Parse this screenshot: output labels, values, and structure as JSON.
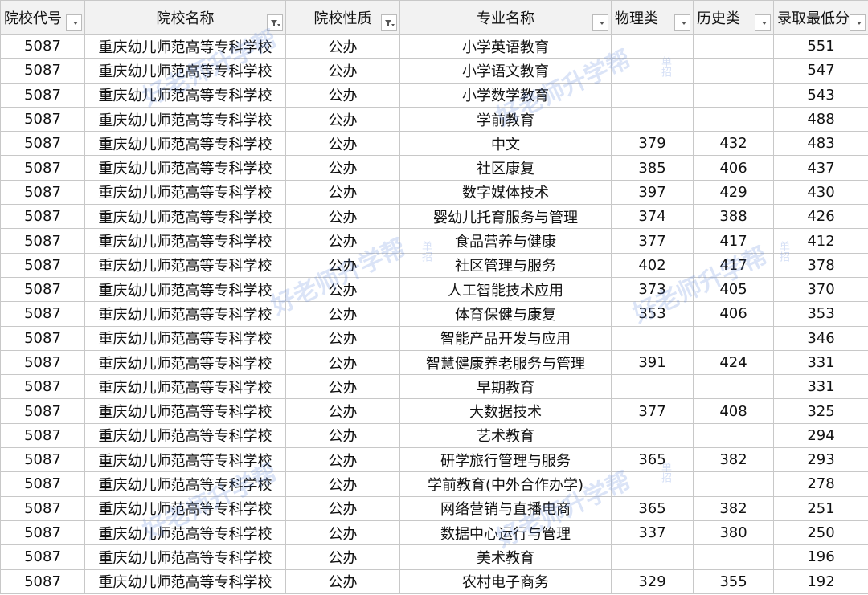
{
  "table": {
    "headers": [
      "院校代号",
      "院校名称",
      "院校性质",
      "专业名称",
      "物理类",
      "历史类",
      "录取最低分"
    ],
    "rows": [
      [
        "5087",
        "重庆幼儿师范高等专科学校",
        "公办",
        "小学英语教育",
        null,
        null,
        551
      ],
      [
        "5087",
        "重庆幼儿师范高等专科学校",
        "公办",
        "小学语文教育",
        null,
        null,
        547
      ],
      [
        "5087",
        "重庆幼儿师范高等专科学校",
        "公办",
        "小学数学教育",
        null,
        null,
        543
      ],
      [
        "5087",
        "重庆幼儿师范高等专科学校",
        "公办",
        "学前教育",
        null,
        null,
        488
      ],
      [
        "5087",
        "重庆幼儿师范高等专科学校",
        "公办",
        "中文",
        379,
        432,
        483
      ],
      [
        "5087",
        "重庆幼儿师范高等专科学校",
        "公办",
        "社区康复",
        385,
        406,
        437
      ],
      [
        "5087",
        "重庆幼儿师范高等专科学校",
        "公办",
        "数字媒体技术",
        397,
        429,
        430
      ],
      [
        "5087",
        "重庆幼儿师范高等专科学校",
        "公办",
        "婴幼儿托育服务与管理",
        374,
        388,
        426
      ],
      [
        "5087",
        "重庆幼儿师范高等专科学校",
        "公办",
        "食品营养与健康",
        377,
        417,
        412
      ],
      [
        "5087",
        "重庆幼儿师范高等专科学校",
        "公办",
        "社区管理与服务",
        402,
        417,
        378
      ],
      [
        "5087",
        "重庆幼儿师范高等专科学校",
        "公办",
        "人工智能技术应用",
        373,
        405,
        370
      ],
      [
        "5087",
        "重庆幼儿师范高等专科学校",
        "公办",
        "体育保健与康复",
        353,
        406,
        353
      ],
      [
        "5087",
        "重庆幼儿师范高等专科学校",
        "公办",
        "智能产品开发与应用",
        null,
        null,
        346
      ],
      [
        "5087",
        "重庆幼儿师范高等专科学校",
        "公办",
        "智慧健康养老服务与管理",
        391,
        424,
        331
      ],
      [
        "5087",
        "重庆幼儿师范高等专科学校",
        "公办",
        "早期教育",
        null,
        null,
        331
      ],
      [
        "5087",
        "重庆幼儿师范高等专科学校",
        "公办",
        "大数据技术",
        377,
        408,
        325
      ],
      [
        "5087",
        "重庆幼儿师范高等专科学校",
        "公办",
        "艺术教育",
        null,
        null,
        294
      ],
      [
        "5087",
        "重庆幼儿师范高等专科学校",
        "公办",
        "研学旅行管理与服务",
        365,
        382,
        293
      ],
      [
        "5087",
        "重庆幼儿师范高等专科学校",
        "公办",
        "学前教育(中外合作办学)",
        null,
        null,
        278
      ],
      [
        "5087",
        "重庆幼儿师范高等专科学校",
        "公办",
        "网络营销与直播电商",
        365,
        382,
        251
      ],
      [
        "5087",
        "重庆幼儿师范高等专科学校",
        "公办",
        "数据中心运行与管理",
        337,
        380,
        250
      ],
      [
        "5087",
        "重庆幼儿师范高等专科学校",
        "公办",
        "美术教育",
        null,
        null,
        196
      ],
      [
        "5087",
        "重庆幼儿师范高等专科学校",
        "公办",
        "农村电子商务",
        329,
        355,
        192
      ]
    ]
  },
  "watermark": {
    "brand": "好老师升学帮",
    "tag": "单招"
  }
}
